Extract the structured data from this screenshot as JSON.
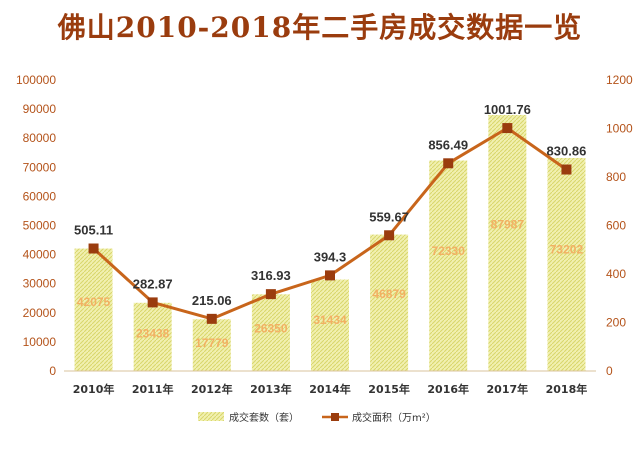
{
  "title": "佛山2010-2018年二手房成交数据一览",
  "chart_data": {
    "type": "bar",
    "categories": [
      "2010年",
      "2011年",
      "2012年",
      "2013年",
      "2014年",
      "2015年",
      "2016年",
      "2017年",
      "2018年"
    ],
    "series": [
      {
        "name": "成交套数（套）",
        "type": "bar",
        "axis": "left",
        "values": [
          42075,
          23438,
          17779,
          26350,
          31434,
          46879,
          72330,
          87987,
          73202
        ],
        "labels": [
          "42075",
          "23438",
          "17779",
          "26350",
          "31434",
          "46879",
          "72330",
          "87987",
          "73202"
        ]
      },
      {
        "name": "成交面积（万m²）",
        "type": "line",
        "axis": "right",
        "values": [
          505.11,
          282.87,
          215.06,
          316.93,
          394.3,
          559.67,
          856.49,
          1001.76,
          830.86
        ],
        "labels": [
          "505.11",
          "282.87",
          "215.06",
          "316.93",
          "394.3",
          "559.67",
          "856.49",
          "1001.76",
          "830.86"
        ]
      }
    ],
    "ylim_left": [
      0,
      100000
    ],
    "ylim_right": [
      0,
      1200
    ],
    "yticks_left": [
      "0",
      "10000",
      "20000",
      "30000",
      "40000",
      "50000",
      "60000",
      "70000",
      "80000",
      "90000",
      "100000"
    ],
    "yticks_right": [
      "0",
      "200",
      "400",
      "600",
      "800",
      "1000",
      "1200"
    ],
    "grid": false,
    "legend_position": "bottom",
    "colors": {
      "bar_fill": "#f1f0b0",
      "bar_stripe": "#d9d66a",
      "bar_label": "#f2b063",
      "line": "#c8651b",
      "marker": "#9a3c0e",
      "axis_text": "#b4531a",
      "title": "#9a3c0e"
    }
  }
}
